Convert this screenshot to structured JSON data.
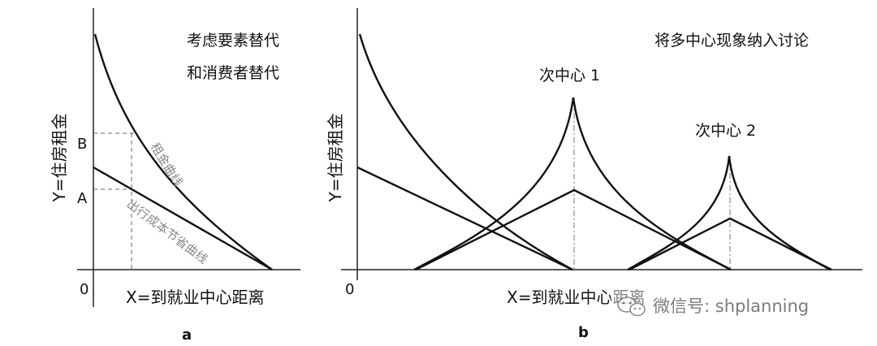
{
  "panel_a": {
    "note_line1": "考虑要素替代",
    "note_line2": "和消费者替代",
    "y_axis_label": "Y=住房租金",
    "x_axis_label": "X=到就业中心距离",
    "origin_label": "0",
    "tick_b": "B",
    "tick_a": "A",
    "rent_curve_label": "租金曲线",
    "cost_line_label": "出行成本节省曲线",
    "caption": "a"
  },
  "panel_b": {
    "note": "将多中心现象纳入讨论",
    "y_axis_label": "Y=住房租金",
    "x_axis_label": "X=到就业中心距离",
    "origin_label": "0",
    "subcenter_1_label": "次中心 1",
    "subcenter_2_label": "次中心 2",
    "caption": "b"
  },
  "watermark": {
    "text": "微信号: shplanning"
  }
}
